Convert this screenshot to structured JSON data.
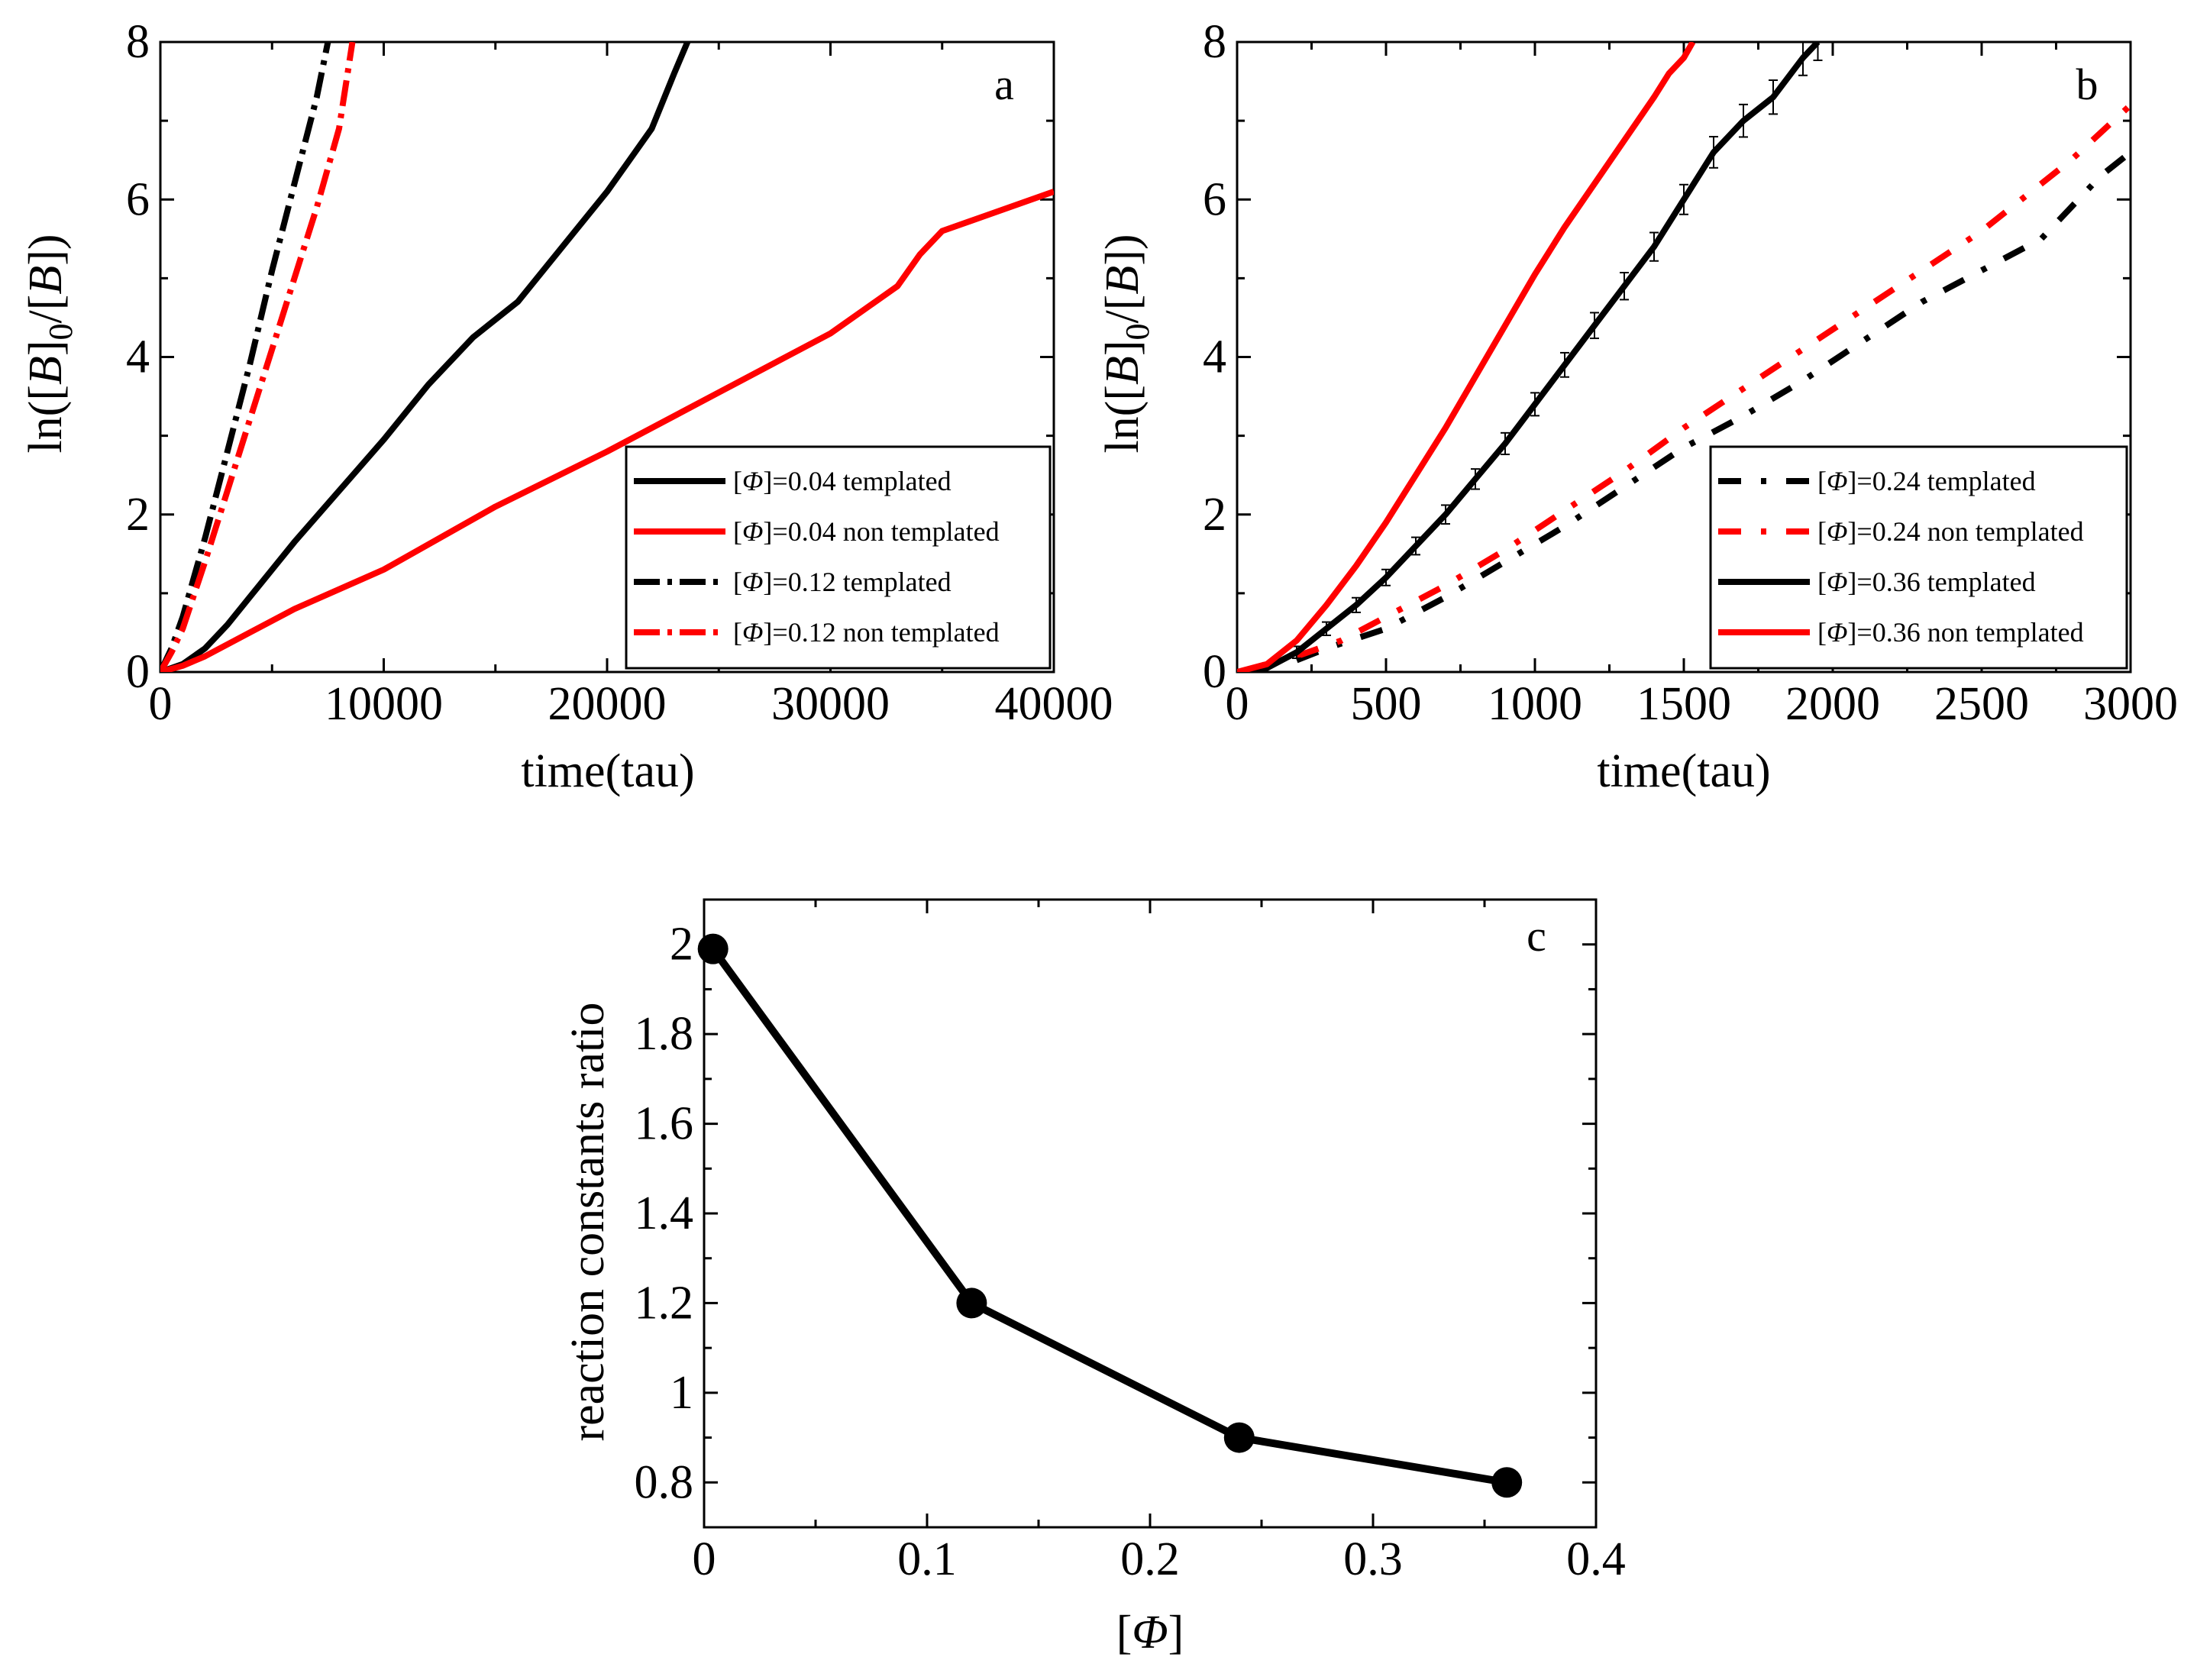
{
  "chart_data": [
    {
      "panel": "a",
      "type": "line",
      "panel_label": "a",
      "xlabel": "time(tau)",
      "ylabel": "ln([B]0/[B])",
      "ylabel_parts": {
        "prefix": "ln([",
        "b1": "B",
        "close": "]",
        "sub": "0",
        "middle": "/[",
        "b2": "B",
        "suffix": "])"
      },
      "xlim": [
        0,
        40000
      ],
      "ylim": [
        0,
        8
      ],
      "xticks": [
        "0",
        "10000",
        "20000",
        "30000",
        "40000"
      ],
      "xtick_values": [
        0,
        10000,
        20000,
        30000,
        40000
      ],
      "yticks": [
        "0",
        "2",
        "4",
        "6",
        "8"
      ],
      "ytick_values": [
        0,
        2,
        4,
        6,
        8
      ],
      "legend_position": "bottom-right",
      "series": [
        {
          "name": "[Φ]=0.04 templated",
          "legend_prefix": "[",
          "legend_phi": "Φ",
          "legend_suffix": "]=0.04 templated",
          "color": "#000000",
          "style": "solid",
          "x": [
            0,
            1000,
            2000,
            3000,
            4000,
            5000,
            6000,
            8000,
            10000,
            12000,
            14000,
            16000,
            18000,
            20000,
            21000,
            22000,
            23000,
            23600
          ],
          "y": [
            0,
            0.1,
            0.3,
            0.6,
            0.95,
            1.3,
            1.65,
            2.3,
            2.95,
            3.65,
            4.25,
            4.7,
            5.4,
            6.1,
            6.5,
            6.9,
            7.6,
            8
          ]
        },
        {
          "name": "[Φ]=0.04 non templated",
          "legend_prefix": "[",
          "legend_phi": "Φ",
          "legend_suffix": "]=0.04 non templated",
          "color": "#ff0000",
          "style": "solid",
          "x": [
            0,
            1000,
            2000,
            4000,
            6000,
            10000,
            15000,
            20000,
            25000,
            30000,
            33000,
            34000,
            35000,
            37000,
            40000
          ],
          "y": [
            0,
            0.08,
            0.2,
            0.5,
            0.8,
            1.3,
            2.1,
            2.8,
            3.55,
            4.3,
            4.9,
            5.3,
            5.6,
            5.8,
            6.1
          ]
        },
        {
          "name": "[Φ]=0.12 templated",
          "legend_prefix": "[",
          "legend_phi": "Φ",
          "legend_suffix": "]=0.12 templated",
          "color": "#000000",
          "style": "dashdot",
          "x": [
            0,
            500,
            1000,
            2000,
            3000,
            4000,
            5000,
            6000,
            7000,
            7500
          ],
          "y": [
            0,
            0.3,
            0.7,
            1.7,
            2.8,
            3.9,
            5.1,
            6.2,
            7.3,
            8
          ]
        },
        {
          "name": "[Φ]=0.12 non templated",
          "legend_prefix": "[",
          "legend_phi": "Φ",
          "legend_suffix": "]=0.12 non templated",
          "color": "#ff0000",
          "style": "dashdot",
          "x": [
            0,
            500,
            1000,
            2000,
            3000,
            4000,
            5000,
            6000,
            7000,
            8000,
            8600
          ],
          "y": [
            0,
            0.25,
            0.55,
            1.4,
            2.3,
            3.2,
            4.1,
            5.0,
            5.9,
            6.9,
            8
          ]
        }
      ]
    },
    {
      "panel": "b",
      "type": "line",
      "panel_label": "b",
      "xlabel": "time(tau)",
      "ylabel": "ln([B]0/[B])",
      "ylabel_parts": {
        "prefix": "ln([",
        "b1": "B",
        "close": "]",
        "sub": "0",
        "middle": "/[",
        "b2": "B",
        "suffix": "])"
      },
      "xlim": [
        0,
        3000
      ],
      "ylim": [
        0,
        8
      ],
      "xticks": [
        "0",
        "500",
        "1000",
        "1500",
        "2000",
        "2500",
        "3000"
      ],
      "xtick_values": [
        0,
        500,
        1000,
        1500,
        2000,
        2500,
        3000
      ],
      "yticks": [
        "0",
        "2",
        "4",
        "6",
        "8"
      ],
      "ytick_values": [
        0,
        2,
        4,
        6,
        8
      ],
      "legend_position": "bottom-right",
      "series": [
        {
          "name": "[Φ]=0.24 templated",
          "legend_prefix": "[",
          "legend_phi": "Φ",
          "legend_suffix": "]=0.24 templated",
          "color": "#000000",
          "style": "dashdot",
          "x": [
            200,
            300,
            500,
            700,
            900,
            1100,
            1300,
            1500,
            1700,
            1900,
            2100,
            2300,
            2500,
            2700,
            2800,
            2900,
            3000
          ],
          "y": [
            0.15,
            0.3,
            0.55,
            0.95,
            1.4,
            1.85,
            2.35,
            2.85,
            3.25,
            3.7,
            4.2,
            4.7,
            5.1,
            5.5,
            5.9,
            6.3,
            6.6
          ]
        },
        {
          "name": "[Φ]=0.24 non templated",
          "legend_prefix": "[",
          "legend_phi": "Φ",
          "legend_suffix": "]=0.24 non templated",
          "color": "#ff0000",
          "style": "dashdot",
          "x": [
            200,
            350,
            500,
            700,
            900,
            1100,
            1300,
            1500,
            1700,
            1900,
            2100,
            2300,
            2500,
            2700,
            2800,
            3000
          ],
          "y": [
            0.2,
            0.4,
            0.7,
            1.1,
            1.55,
            2.05,
            2.55,
            3.1,
            3.6,
            4.1,
            4.6,
            5.1,
            5.6,
            6.2,
            6.5,
            7.2
          ]
        },
        {
          "name": "[Φ]=0.36 templated",
          "legend_prefix": "[",
          "legend_phi": "Φ",
          "legend_suffix": "]=0.36 templated",
          "color": "#000000",
          "style": "solid",
          "error_bars": true,
          "x": [
            0,
            100,
            200,
            300,
            400,
            500,
            600,
            700,
            800,
            900,
            1000,
            1100,
            1200,
            1300,
            1400,
            1500,
            1600,
            1700,
            1800,
            1900,
            1950
          ],
          "y": [
            0,
            0.05,
            0.25,
            0.55,
            0.85,
            1.2,
            1.6,
            2.0,
            2.45,
            2.9,
            3.4,
            3.9,
            4.4,
            4.9,
            5.4,
            6.0,
            6.6,
            7.0,
            7.3,
            7.8,
            8
          ]
        },
        {
          "name": "[Φ]=0.36 non templated",
          "legend_prefix": "[",
          "legend_phi": "Φ",
          "legend_suffix": "]=0.36 non templated",
          "color": "#ff0000",
          "style": "solid",
          "x": [
            0,
            100,
            200,
            300,
            400,
            500,
            600,
            700,
            800,
            900,
            1000,
            1100,
            1200,
            1300,
            1400,
            1450,
            1500,
            1530
          ],
          "y": [
            0,
            0.1,
            0.4,
            0.85,
            1.35,
            1.9,
            2.5,
            3.1,
            3.75,
            4.4,
            5.05,
            5.65,
            6.2,
            6.75,
            7.3,
            7.6,
            7.8,
            8
          ]
        }
      ]
    },
    {
      "panel": "c",
      "type": "line",
      "panel_label": "c",
      "xlabel": "[Φ]",
      "xlabel_parts": {
        "prefix": "[",
        "phi": "Φ",
        "suffix": "]"
      },
      "ylabel": "reaction constants ratio",
      "xlim": [
        0,
        0.4
      ],
      "ylim": [
        0.7,
        2.1
      ],
      "xticks": [
        "0",
        "0.1",
        "0.2",
        "0.3",
        "0.4"
      ],
      "xtick_values": [
        0,
        0.1,
        0.2,
        0.3,
        0.4
      ],
      "yticks": [
        "0.8",
        "1",
        "1.2",
        "1.4",
        "1.6",
        "1.8",
        "2"
      ],
      "ytick_values": [
        0.8,
        1,
        1.2,
        1.4,
        1.6,
        1.8,
        2
      ],
      "series": [
        {
          "name": "ratio",
          "color": "#000000",
          "style": "solid",
          "markers": true,
          "x": [
            0.004,
            0.12,
            0.24,
            0.36
          ],
          "y": [
            1.99,
            1.2,
            0.9,
            0.8
          ]
        }
      ]
    }
  ]
}
